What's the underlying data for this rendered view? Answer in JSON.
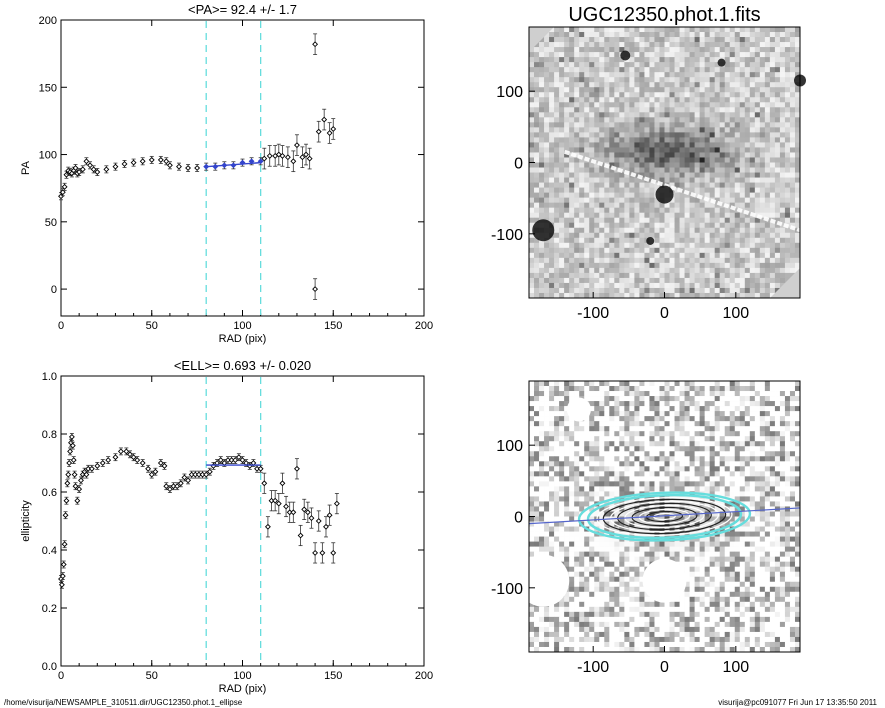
{
  "footer": {
    "path": "/home/visurija/NEWSAMPLE_310511.dir/UGC12350.phot.1_ellipse",
    "stamp": "visurija@pc091077  Fri Jun 17 13:35:50 2011"
  },
  "chart_data": [
    {
      "id": "pa",
      "type": "scatter",
      "title": "<PA>=  92.4 +/-   1.7",
      "xlabel": "RAD (pix)",
      "ylabel": "PA",
      "xlim": [
        0,
        200
      ],
      "ylim": [
        -20,
        200
      ],
      "xticks": [
        "0",
        "50",
        "100",
        "150",
        "200"
      ],
      "yticks": [
        "0",
        "50",
        "100",
        "150",
        "200"
      ],
      "vlines": [
        80,
        110
      ],
      "fit": {
        "x": [
          80,
          110
        ],
        "y": [
          91,
          94
        ]
      },
      "series": [
        {
          "x": [
            0,
            1,
            2,
            3,
            4,
            5,
            6,
            7,
            8,
            9,
            10,
            12,
            14,
            16,
            18,
            20,
            25,
            30,
            35,
            40,
            45,
            50,
            55,
            58,
            60,
            65,
            70,
            75,
            80,
            85,
            90,
            95,
            100,
            105,
            110
          ],
          "y": [
            69,
            72,
            76,
            85,
            88,
            87,
            86,
            88,
            90,
            86,
            87,
            89,
            95,
            92,
            89,
            87,
            89,
            91,
            93,
            94,
            95,
            96,
            96,
            95,
            92,
            91,
            90,
            90,
            91,
            91,
            92,
            92,
            94,
            95,
            95
          ]
        },
        {
          "x": [
            112,
            115,
            118,
            120,
            122,
            125,
            128,
            130,
            133,
            135,
            137,
            140,
            142,
            145,
            148,
            150
          ],
          "y": [
            97,
            99,
            99,
            100,
            99,
            98,
            95,
            107,
            98,
            100,
            97,
            182,
            117,
            126,
            116,
            119
          ]
        },
        {
          "x": [
            140
          ],
          "y": [
            0
          ]
        }
      ]
    },
    {
      "id": "ell",
      "type": "scatter",
      "title": "<ELL>= 0.693 +/-  0.020",
      "xlabel": "RAD (pix)",
      "ylabel": "ellipticity",
      "xlim": [
        0,
        200
      ],
      "ylim": [
        0,
        1
      ],
      "xticks": [
        "0",
        "50",
        "100",
        "150",
        "200"
      ],
      "yticks": [
        "0.0",
        "0.2",
        "0.4",
        "0.6",
        "0.8",
        "1.0"
      ],
      "vlines": [
        80,
        110
      ],
      "fit": {
        "x": [
          80,
          110
        ],
        "y": [
          0.693,
          0.693
        ]
      },
      "series": [
        {
          "x": [
            0,
            0.5,
            1,
            1.5,
            2,
            2.5,
            3,
            3.5,
            4,
            4.5,
            5,
            5.5,
            6,
            6.5,
            7,
            7.5,
            8,
            9,
            10,
            11,
            12,
            13,
            14,
            15,
            17,
            20,
            23,
            26,
            30,
            33,
            36,
            38,
            40,
            42,
            45,
            48,
            50,
            52,
            55,
            57,
            58,
            60,
            62,
            64,
            66,
            68,
            70,
            72,
            74,
            76,
            78,
            80,
            82,
            84,
            86,
            88,
            90,
            92,
            94,
            96,
            98,
            100,
            102,
            104,
            106,
            108,
            110
          ],
          "y": [
            0.3,
            0.28,
            0.31,
            0.35,
            0.42,
            0.52,
            0.57,
            0.63,
            0.66,
            0.7,
            0.74,
            0.77,
            0.79,
            0.76,
            0.71,
            0.66,
            0.62,
            0.57,
            0.61,
            0.64,
            0.66,
            0.67,
            0.66,
            0.68,
            0.68,
            0.69,
            0.7,
            0.71,
            0.72,
            0.74,
            0.74,
            0.73,
            0.72,
            0.71,
            0.7,
            0.68,
            0.66,
            0.67,
            0.7,
            0.69,
            0.62,
            0.61,
            0.62,
            0.62,
            0.63,
            0.65,
            0.64,
            0.66,
            0.66,
            0.66,
            0.66,
            0.66,
            0.67,
            0.69,
            0.7,
            0.71,
            0.7,
            0.71,
            0.71,
            0.71,
            0.72,
            0.71,
            0.7,
            0.69,
            0.7,
            0.68,
            0.68
          ]
        },
        {
          "x": [
            112,
            114,
            116,
            118,
            120,
            122,
            124,
            126,
            128,
            130,
            132,
            134,
            136,
            138,
            140,
            142,
            144,
            146,
            148,
            150,
            152
          ],
          "y": [
            0.63,
            0.48,
            0.57,
            0.57,
            0.56,
            0.63,
            0.55,
            0.53,
            0.53,
            0.68,
            0.45,
            0.54,
            0.53,
            0.51,
            0.39,
            0.5,
            0.39,
            0.48,
            0.52,
            0.39,
            0.56
          ]
        }
      ]
    },
    {
      "id": "img1",
      "type": "image",
      "title": "UGC12350.phot.1.fits",
      "xlim": [
        -190,
        190
      ],
      "ylim": [
        -190,
        190
      ],
      "xticks": [
        "-100",
        "0",
        "100"
      ],
      "yticks": [
        "-100",
        "0",
        "100"
      ]
    },
    {
      "id": "img2",
      "type": "image",
      "title": "",
      "xlim": [
        -190,
        190
      ],
      "ylim": [
        -190,
        190
      ],
      "xticks": [
        "-100",
        "0",
        "100"
      ],
      "yticks": [
        "-100",
        "0",
        "100"
      ]
    }
  ],
  "colors": {
    "points": "#000000",
    "fit": "#3344cc",
    "vline": "#66dddd",
    "axis": "#000000",
    "ellipse_inner": "#ffffff",
    "ellipse_outer": "#66dddd",
    "pa_line": "#5566cc"
  }
}
